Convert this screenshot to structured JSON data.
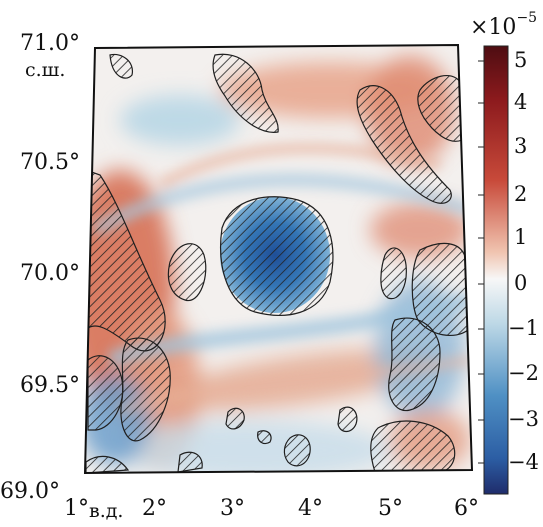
{
  "map": {
    "lat_ticks": [
      "71.0°",
      "70.5°",
      "70.0°",
      "69.5°",
      "69.0°"
    ],
    "lon_ticks": [
      "1°",
      "2°",
      "3°",
      "4°",
      "5°",
      "6°"
    ],
    "lat_unit": "с.ш.",
    "lon_unit": "в.д.",
    "extent": {
      "lon": [
        1,
        6
      ],
      "lat": [
        69,
        71
      ]
    },
    "colormap": "diverging-red-blue",
    "hatch_regions": "stippled significance"
  },
  "colorbar": {
    "multiplier_base": "×10",
    "multiplier_exp": "−5",
    "ticks": [
      "5",
      "4",
      "3",
      "2",
      "1",
      "0",
      "−1",
      "−2",
      "−3",
      "−4"
    ],
    "range": [
      -5,
      5.5
    ],
    "colors": {
      "top": "#4e0d12",
      "red": "#c84a3a",
      "white": "#f7f7f7",
      "blue": "#2e6eaf",
      "bottom": "#1f2c6b"
    }
  }
}
